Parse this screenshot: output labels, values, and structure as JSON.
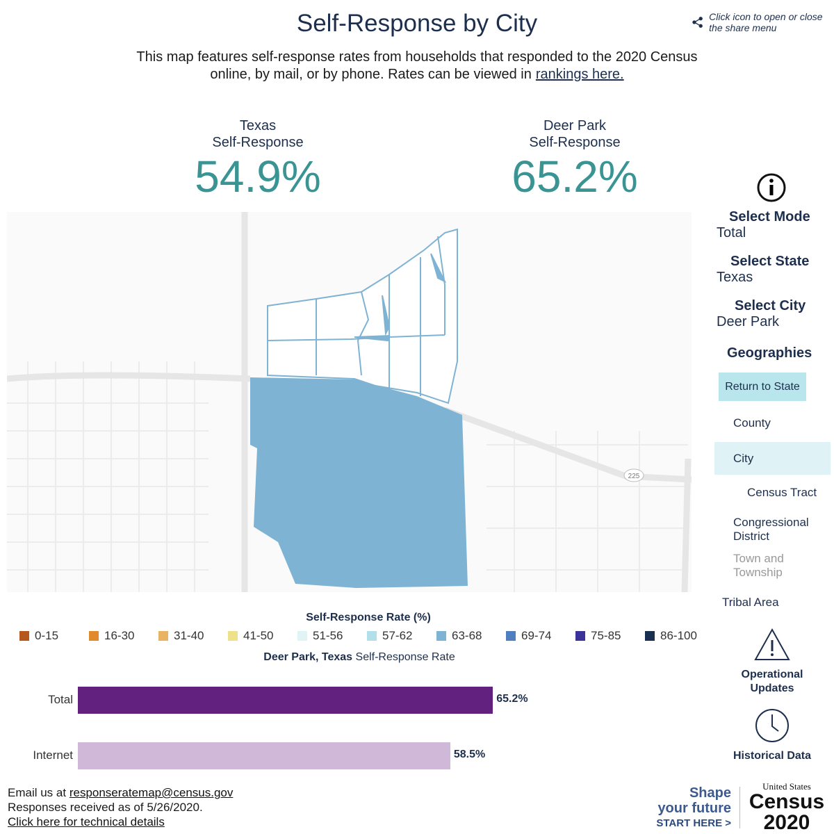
{
  "header": {
    "title": "Self-Response by City",
    "share_hint": "Click icon to open or close the share menu",
    "subtitle": "This map features self-response rates from households that responded to the 2020 Census online, by mail, or by phone. Rates can be viewed in",
    "subtitle_link": "rankings here."
  },
  "stats": [
    {
      "label1": "Texas",
      "label2": "Self-Response",
      "value": "54.9%"
    },
    {
      "label1": "Deer Park",
      "label2": "Self-Response",
      "value": "65.2%"
    }
  ],
  "map": {
    "road_shield": "225",
    "city_fill": "#7fb3d3"
  },
  "sidebar": {
    "mode_label": "Select Mode",
    "mode_value": "Total",
    "state_label": "Select State",
    "state_value": "Texas",
    "city_label": "Select City",
    "city_value": "Deer Park",
    "geographies_label": "Geographies",
    "return_button": "Return to State",
    "geos": [
      "County",
      "City",
      "Census Tract",
      "Congressional District",
      "Town and Township",
      "Tribal Area"
    ],
    "selected_geo": "City",
    "operational": "Operational Updates",
    "historical": "Historical Data"
  },
  "legend": {
    "title": "Self-Response Rate (%)",
    "items": [
      {
        "label": "0-15",
        "color": "#b5581d"
      },
      {
        "label": "16-30",
        "color": "#e08a2c"
      },
      {
        "label": "31-40",
        "color": "#e8b464"
      },
      {
        "label": "41-50",
        "color": "#efe08a"
      },
      {
        "label": "51-56",
        "color": "#e0f3f5"
      },
      {
        "label": "57-62",
        "color": "#b2e0ea"
      },
      {
        "label": "63-68",
        "color": "#7fb3d3"
      },
      {
        "label": "69-74",
        "color": "#4f7fbf"
      },
      {
        "label": "75-85",
        "color": "#3b3398"
      },
      {
        "label": "86-100",
        "color": "#1a3050"
      }
    ]
  },
  "chart_data": {
    "type": "bar",
    "title_bold": "Deer Park, Texas",
    "title_rest": "Self-Response Rate",
    "categories": [
      "Total",
      "Internet"
    ],
    "values": [
      65.2,
      58.5
    ],
    "value_labels": [
      "65.2%",
      "58.5%"
    ],
    "colors": [
      "#63217f",
      "#d0b8d8"
    ],
    "xlim": [
      0,
      100
    ]
  },
  "footer": {
    "email_prefix": "Email us at",
    "email": "responseratemap@census.gov",
    "received": "Responses received as of 5/26/2020.",
    "tech_link": "Click here for technical details"
  },
  "logo": {
    "shape1": "Shape",
    "shape2": "your future",
    "start": "START HERE >",
    "us": "United States",
    "census": "Census",
    "year": "2020"
  }
}
